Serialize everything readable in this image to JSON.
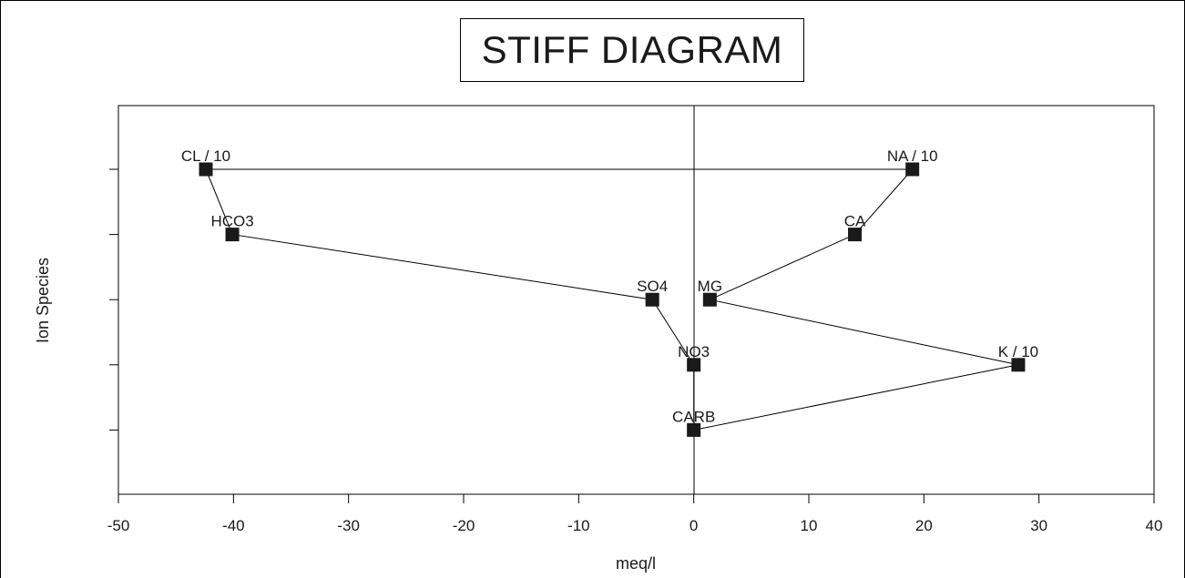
{
  "chart_data": {
    "type": "line",
    "title": "STIFF DIAGRAM",
    "xlabel": "meq/l",
    "ylabel": "Ion Species",
    "xlim": [
      -50,
      40
    ],
    "x_ticks": [
      -50,
      -40,
      -30,
      -20,
      -10,
      0,
      10,
      20,
      30,
      40
    ],
    "x_tick_labels": [
      "-50",
      "-40",
      "-30",
      "-20",
      "-10",
      "0",
      "10",
      "20",
      "30",
      "40"
    ],
    "y_levels": 6,
    "grid": false,
    "series": [
      {
        "points": [
          {
            "label": "NA / 10",
            "x": 19.0,
            "level": 1
          },
          {
            "label": "CA",
            "x": 14.0,
            "level": 2
          },
          {
            "label": "MG",
            "x": 1.4,
            "level": 3
          },
          {
            "label": "K / 10",
            "x": 28.2,
            "level": 4
          },
          {
            "label": "CARB",
            "x": 0.0,
            "level": 5
          },
          {
            "label": "NO3",
            "x": 0.0,
            "level": 4
          },
          {
            "label": "SO4",
            "x": -3.6,
            "level": 3
          },
          {
            "label": "HCO3",
            "x": -40.1,
            "level": 2
          },
          {
            "label": "CL / 10",
            "x": -42.4,
            "level": 1
          }
        ],
        "closed": true
      }
    ]
  }
}
